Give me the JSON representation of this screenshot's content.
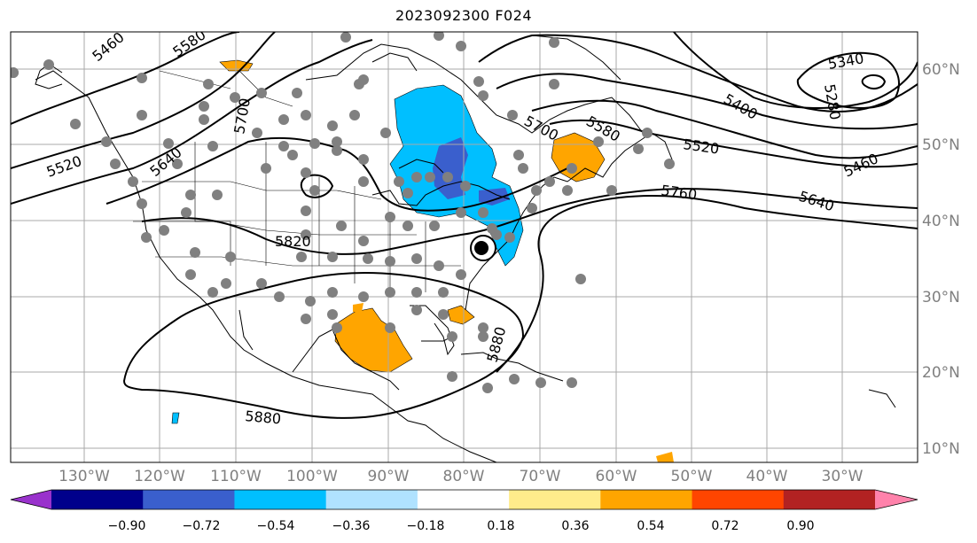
{
  "title": "2023092300 F024",
  "longitude_labels": [
    "130°W",
    "120°W",
    "110°W",
    "100°W",
    "90°W",
    "80°W",
    "70°W",
    "60°W",
    "50°W",
    "40°W",
    "30°W"
  ],
  "latitude_labels": [
    "60°N",
    "50°N",
    "40°N",
    "30°N",
    "20°N",
    "10°N"
  ],
  "contour_labels": [
    "5340",
    "5280",
    "5400",
    "5460",
    "5520",
    "5580",
    "5640",
    "5700",
    "5760",
    "5820",
    "5880",
    "5460",
    "5520",
    "5580",
    "5640",
    "5700",
    "5880"
  ],
  "colorbar": {
    "ticks": [
      "−0.90",
      "−0.72",
      "−0.54",
      "−0.36",
      "−0.18",
      "0.18",
      "0.36",
      "0.54",
      "0.72",
      "0.90"
    ],
    "colors": [
      "#9932cc",
      "#00008b",
      "#3a5fcd",
      "#00bfff",
      "#b0e2ff",
      "#ffffff",
      "#ffec8b",
      "#ffa500",
      "#ff4500",
      "#b22222",
      "#ff82ab"
    ]
  },
  "station_count_note": ""
}
